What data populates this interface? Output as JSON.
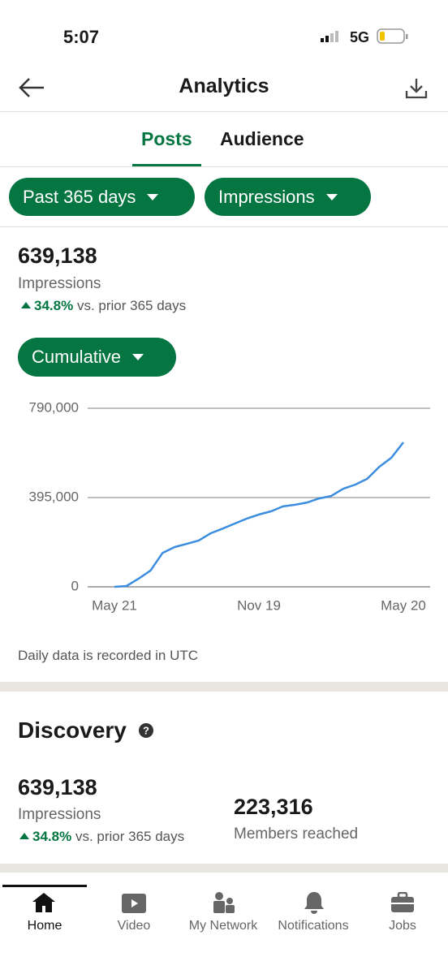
{
  "status_bar": {
    "time": "5:07",
    "network": "5G"
  },
  "header": {
    "title": "Analytics"
  },
  "tabs": [
    "Posts",
    "Audience"
  ],
  "filters": [
    "Past 365 days",
    "Impressions"
  ],
  "summary": {
    "value": "639,138",
    "label": "Impressions",
    "change": "34.8%",
    "comparison": "vs. prior 365 days"
  },
  "mode": "Cumulative",
  "chart_data": {
    "type": "line",
    "categories": [
      "May 21",
      null,
      null,
      null,
      null,
      null,
      null,
      null,
      null,
      null,
      null,
      null,
      "Nov 19",
      null,
      null,
      null,
      null,
      null,
      null,
      null,
      null,
      null,
      null,
      null,
      "May 20"
    ],
    "values": [
      0,
      3600,
      36000,
      72000,
      150000,
      176000,
      190000,
      205000,
      237000,
      258000,
      280000,
      302000,
      320000,
      334000,
      356000,
      363000,
      373000,
      391000,
      402000,
      434000,
      452000,
      478000,
      531000,
      571000,
      639138
    ],
    "color": "#3b8de0",
    "ylim": [
      0,
      790000
    ],
    "yticks": [
      0,
      {
        "value": 395000,
        "label": "395,000"
      },
      {
        "value": 790000,
        "label": "790,000"
      }
    ],
    "grid": true
  },
  "note": "Daily data is recorded in UTC",
  "discovery": {
    "title": "Discovery",
    "stats": [
      {
        "value": "639,138",
        "label": "Impressions",
        "change": "34.8%",
        "comparison": "vs. prior 365 days"
      },
      {
        "value": "223,316",
        "label": "Members reached"
      }
    ]
  },
  "nav": [
    "Home",
    "Video",
    "My Network",
    "Notifications",
    "Jobs"
  ]
}
